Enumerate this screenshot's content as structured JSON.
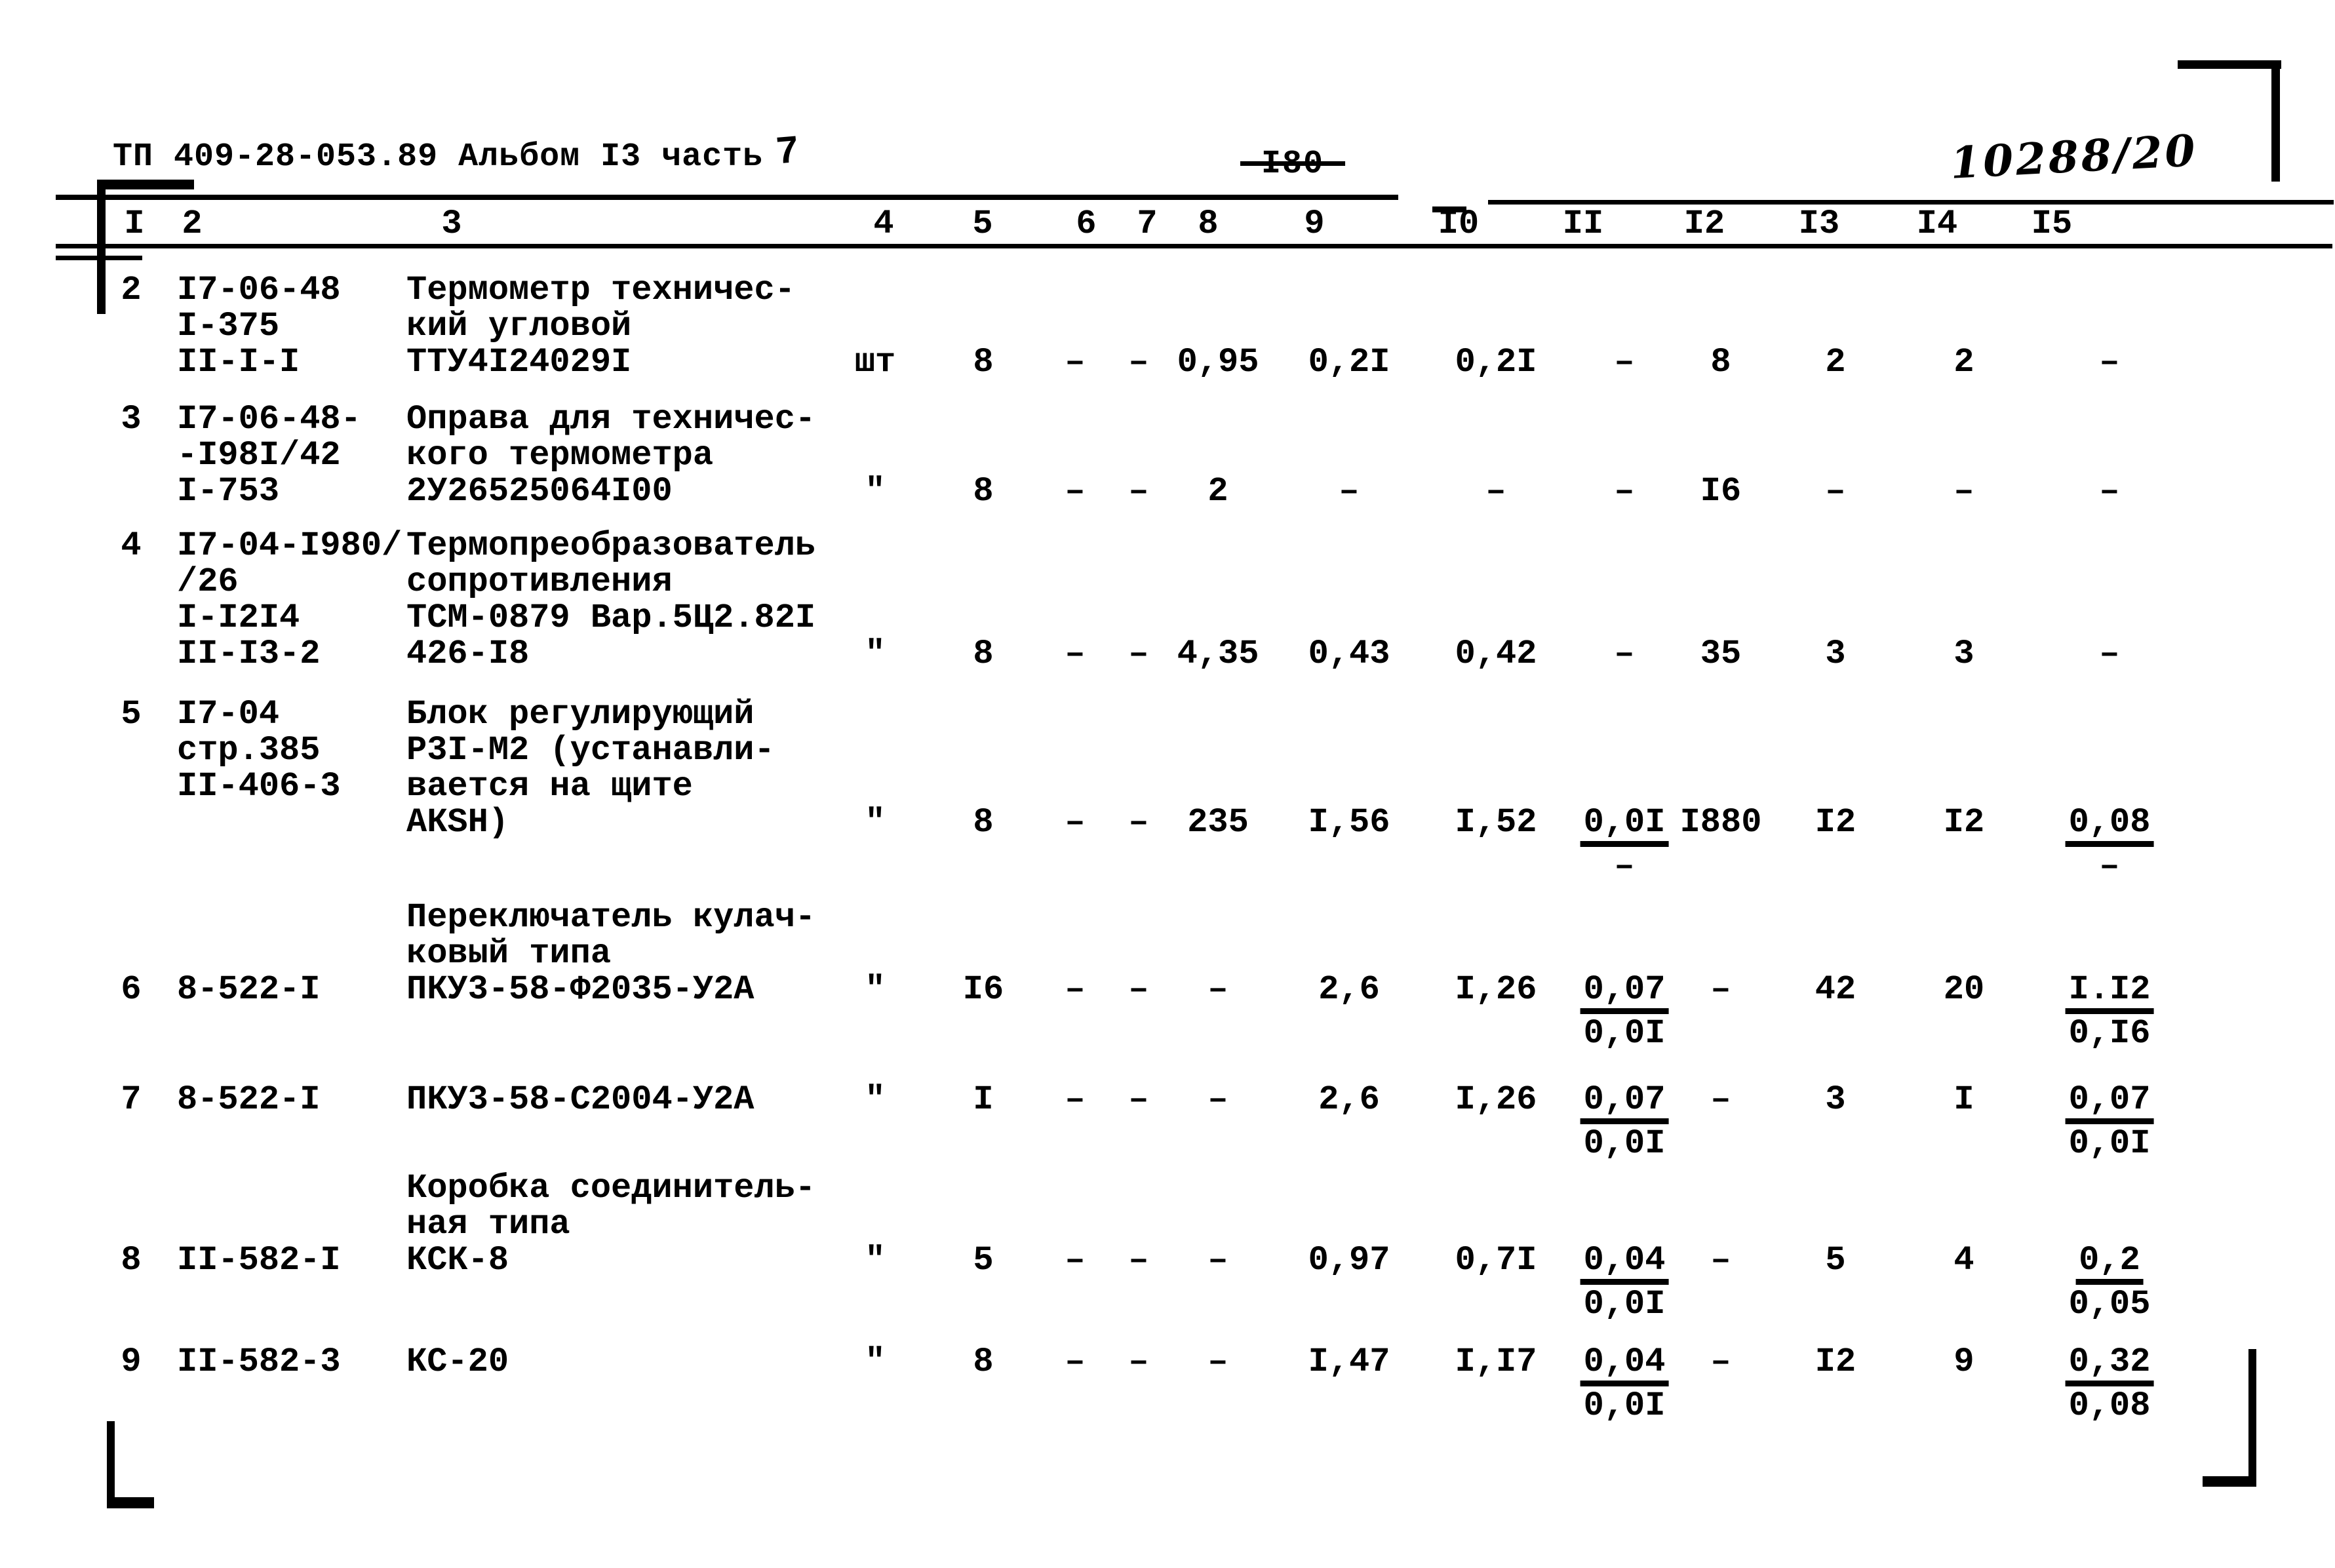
{
  "page": {
    "title": "ТП 409-28-053.89 Альбом I3 часть",
    "title_part_handwritten": "7",
    "page_number": "-I80-",
    "handwritten_number": "10288/20"
  },
  "table": {
    "column_headers": [
      "I",
      "2",
      "3",
      "4",
      "5",
      "6",
      "7",
      "8",
      "9",
      "I0",
      "II",
      "I2",
      "I3",
      "I4",
      "I5"
    ],
    "rows": [
      {
        "lines": [
          {
            "num": "2",
            "code": "I7-06-48",
            "desc": "Термометр техничес-"
          },
          {
            "code": "I-375",
            "desc": "кий угловой"
          },
          {
            "code": "II-I-I",
            "desc": "ТТУ4I24029I",
            "unit": "шт",
            "cells": {
              "5": "8",
              "6": "–",
              "7": "–",
              "8": "0,95",
              "9": "0,2I",
              "10": "0,2I",
              "11": "–",
              "12": "8",
              "13": "2",
              "14": "2",
              "15": "–"
            }
          }
        ]
      },
      {
        "lines": [
          {
            "num": "3",
            "code": "I7-06-48-",
            "desc": "Оправа для техничес-"
          },
          {
            "code": "-I98I/42",
            "desc": "кого термометра"
          },
          {
            "code": "I-753",
            "desc": "2У26525064I00",
            "unit": "\"",
            "cells": {
              "5": "8",
              "6": "–",
              "7": "–",
              "8": "2",
              "9": "–",
              "10": "–",
              "11": "–",
              "12": "I6",
              "13": "–",
              "14": "–",
              "15": "–"
            }
          }
        ]
      },
      {
        "lines": [
          {
            "num": "4",
            "code": "I7-04-I980/",
            "desc": "Термопреобразователь"
          },
          {
            "code": "/26",
            "desc": "сопротивления"
          },
          {
            "code": "I-I2I4",
            "desc": "ТСМ-0879 Вар.5Ц2.82I"
          },
          {
            "code": "II-I3-2",
            "desc": "426-I8",
            "unit": "\"",
            "cells": {
              "5": "8",
              "6": "–",
              "7": "–",
              "8": "4,35",
              "9": "0,43",
              "10": "0,42",
              "11": "–",
              "12": "35",
              "13": "3",
              "14": "3",
              "15": "–"
            }
          }
        ]
      },
      {
        "lines": [
          {
            "num": "5",
            "code": "I7-04",
            "desc": "Блок регулирующий"
          },
          {
            "code": "стр.385",
            "desc": "Р3I-М2 (устанавли-"
          },
          {
            "code": "II-406-3",
            "desc": "вается на щите"
          },
          {
            "desc": "АКSН)",
            "unit": "\"",
            "cells": {
              "5": "8",
              "6": "–",
              "7": "–",
              "8": "235",
              "9": "I,56",
              "10": "I,52",
              "11": {
                "t": "0,0I",
                "b": "–"
              },
              "12": "I880",
              "13": "I2",
              "14": "I2",
              "15": {
                "t": "0,08",
                "b": "–"
              }
            }
          }
        ]
      },
      {
        "lines": [
          {
            "desc": "Переключатель кулач-"
          },
          {
            "desc": "ковый типа"
          },
          {
            "num": "6",
            "code": "8-522-I",
            "desc": "ПКУ3-58-Ф2035-У2А",
            "unit": "\"",
            "cells": {
              "5": "I6",
              "6": "–",
              "7": "–",
              "8": "–",
              "9": "2,6",
              "10": "I,26",
              "11": {
                "t": "0,07",
                "b": "0,0I"
              },
              "12": "–",
              "13": "42",
              "14": "20",
              "15": {
                "t": "I.I2",
                "b": "0,I6"
              }
            }
          }
        ]
      },
      {
        "lines": [
          {
            "num": "7",
            "code": "8-522-I",
            "desc": "ПКУ3-58-С2004-У2А",
            "unit": "\"",
            "cells": {
              "5": "I",
              "6": "–",
              "7": "–",
              "8": "–",
              "9": "2,6",
              "10": "I,26",
              "11": {
                "t": "0,07",
                "b": "0,0I"
              },
              "12": "–",
              "13": "3",
              "14": "I",
              "15": {
                "t": "0,07",
                "b": "0,0I"
              }
            }
          }
        ]
      },
      {
        "lines": [
          {
            "desc": "Коробка соединитель-"
          },
          {
            "desc": "ная типа"
          },
          {
            "num": "8",
            "code": "II-582-I",
            "desc": "КСК-8",
            "unit": "\"",
            "cells": {
              "5": "5",
              "6": "–",
              "7": "–",
              "8": "–",
              "9": "0,97",
              "10": "0,7I",
              "11": {
                "t": "0,04",
                "b": "0,0I"
              },
              "12": "–",
              "13": "5",
              "14": "4",
              "15": {
                "t": "0,2",
                "b": "0,05"
              }
            }
          }
        ]
      },
      {
        "lines": [
          {
            "num": "9",
            "code": "II-582-3",
            "desc": "КС-20",
            "unit": "\"",
            "cells": {
              "5": "8",
              "6": "–",
              "7": "–",
              "8": "–",
              "9": "I,47",
              "10": "I,I7",
              "11": {
                "t": "0,04",
                "b": "0,0I"
              },
              "12": "–",
              "13": "I2",
              "14": "9",
              "15": {
                "t": "0,32",
                "b": "0,08"
              }
            }
          }
        ]
      }
    ]
  }
}
